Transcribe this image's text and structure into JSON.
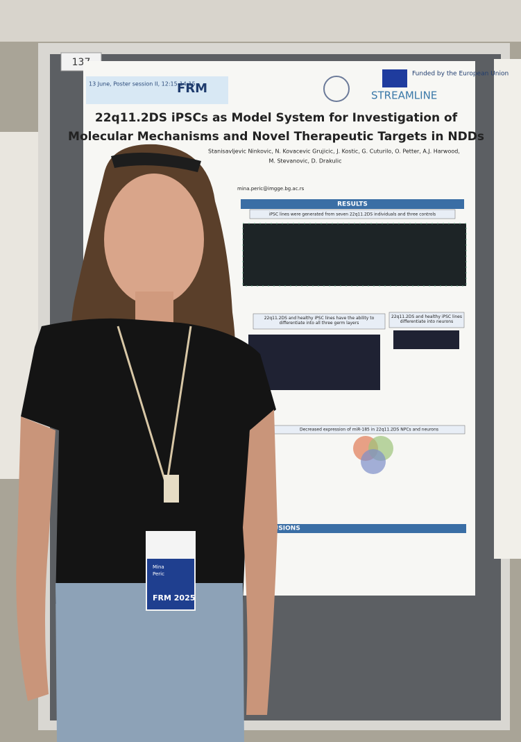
{
  "board_number": "137",
  "poster": {
    "session": "13 June, Poster session II, 12:15-14:15",
    "meeting": "FRM",
    "funding": "Funded by the European Union",
    "project": "STREAMLINE",
    "title": [
      "22q11.2DS iPSCs as Model System for Investigation of",
      "Molecular Mechanisms and Novel Therapeutic Targets in NDDs"
    ],
    "authors": [
      "Stanisavljevic Ninkovic, N. Kovacevic Grujicic, J. Kostic, G. Cuturilo, O. Petter, A.J. Harwood,",
      "M. Stevanovic, D. Drakulic"
    ],
    "email": "mina.peric@imgge.bg.ac.rs",
    "results_heading": "RESULTS",
    "sections": [
      "iPSC lines were generated from seven 22q11.2DS individuals and three controls",
      "22q11.2DS and healthy iPSC lines have the ability to differentiate into all three germ layers",
      "22q11.2DS and healthy iPSC lines differentiate into neurons",
      "Decreased expression of miR-185 in 22q11.2DS NPCs and neurons"
    ],
    "conclusions_heading": "CLUSIONS"
  },
  "badge": {
    "name": [
      "Mina",
      "Peric"
    ],
    "event": "FRM 2025"
  }
}
